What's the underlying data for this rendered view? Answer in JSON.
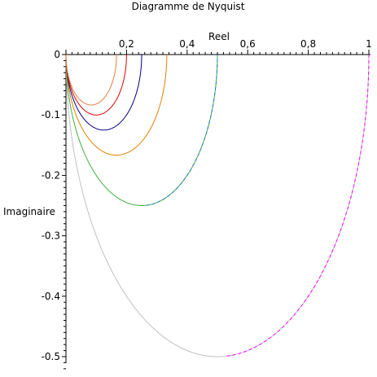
{
  "chart_data": {
    "type": "line",
    "title": "Diagramme de Nyquist",
    "xlabel": "Reel",
    "ylabel": "Imaginaire",
    "xlim": [
      0,
      1
    ],
    "ylim": [
      -0.5,
      0
    ],
    "grid": false,
    "legend": "none",
    "x_ticks": [
      {
        "value": 0.2,
        "label": "0,2"
      },
      {
        "value": 0.4,
        "label": "0,4"
      },
      {
        "value": 0.6,
        "label": "0,6"
      },
      {
        "value": 0.8,
        "label": "0,8"
      },
      {
        "value": 1,
        "label": "1"
      }
    ],
    "y_ticks": [
      {
        "value": 0,
        "label": "0"
      },
      {
        "value": -0.1,
        "label": "-0.1"
      },
      {
        "value": -0.2,
        "label": "-0.2"
      },
      {
        "value": -0.3,
        "label": "-0.3"
      },
      {
        "value": -0.4,
        "label": "-0.4"
      },
      {
        "value": -0.5,
        "label": "-0.5"
      }
    ],
    "series": [
      {
        "diameter": 1.0,
        "color": "#c0c0c0",
        "segment": "full",
        "secondary_color": "#ff00ff"
      },
      {
        "diameter": 0.5,
        "color": "#40b040",
        "segment": "full",
        "secondary_color": "#2080c0"
      },
      {
        "diameter": 0.333,
        "color": "#e08000",
        "segment": "full"
      },
      {
        "diameter": 0.25,
        "color": "#000080",
        "segment": "full"
      },
      {
        "diameter": 0.2,
        "color": "#e00000",
        "segment": "full"
      },
      {
        "diameter": 0.167,
        "color": "#e08040",
        "segment": "full"
      }
    ]
  }
}
